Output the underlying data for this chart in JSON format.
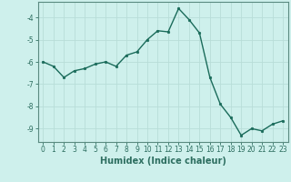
{
  "x": [
    0,
    1,
    2,
    3,
    4,
    5,
    6,
    7,
    8,
    9,
    10,
    11,
    12,
    13,
    14,
    15,
    16,
    17,
    18,
    19,
    20,
    21,
    22,
    23
  ],
  "y": [
    -6.0,
    -6.2,
    -6.7,
    -6.4,
    -6.3,
    -6.1,
    -6.0,
    -6.2,
    -5.7,
    -5.55,
    -5.0,
    -4.6,
    -4.65,
    -3.6,
    -4.1,
    -4.7,
    -6.7,
    -7.9,
    -8.5,
    -9.3,
    -9.0,
    -9.1,
    -8.8,
    -8.65
  ],
  "line_color": "#1a6b5a",
  "marker": "o",
  "markersize": 1.8,
  "linewidth": 1.0,
  "bg_color": "#cef0ec",
  "grid_color": "#b8ddd8",
  "xlabel": "Humidex (Indice chaleur)",
  "xlim": [
    -0.5,
    23.5
  ],
  "ylim": [
    -9.6,
    -3.3
  ],
  "yticks": [
    -9,
    -8,
    -7,
    -6,
    -5,
    -4
  ],
  "xticks": [
    0,
    1,
    2,
    3,
    4,
    5,
    6,
    7,
    8,
    9,
    10,
    11,
    12,
    13,
    14,
    15,
    16,
    17,
    18,
    19,
    20,
    21,
    22,
    23
  ],
  "tick_fontsize": 5.5,
  "xlabel_fontsize": 7.0,
  "axis_color": "#2d6e60",
  "spine_color": "#5a8a80"
}
